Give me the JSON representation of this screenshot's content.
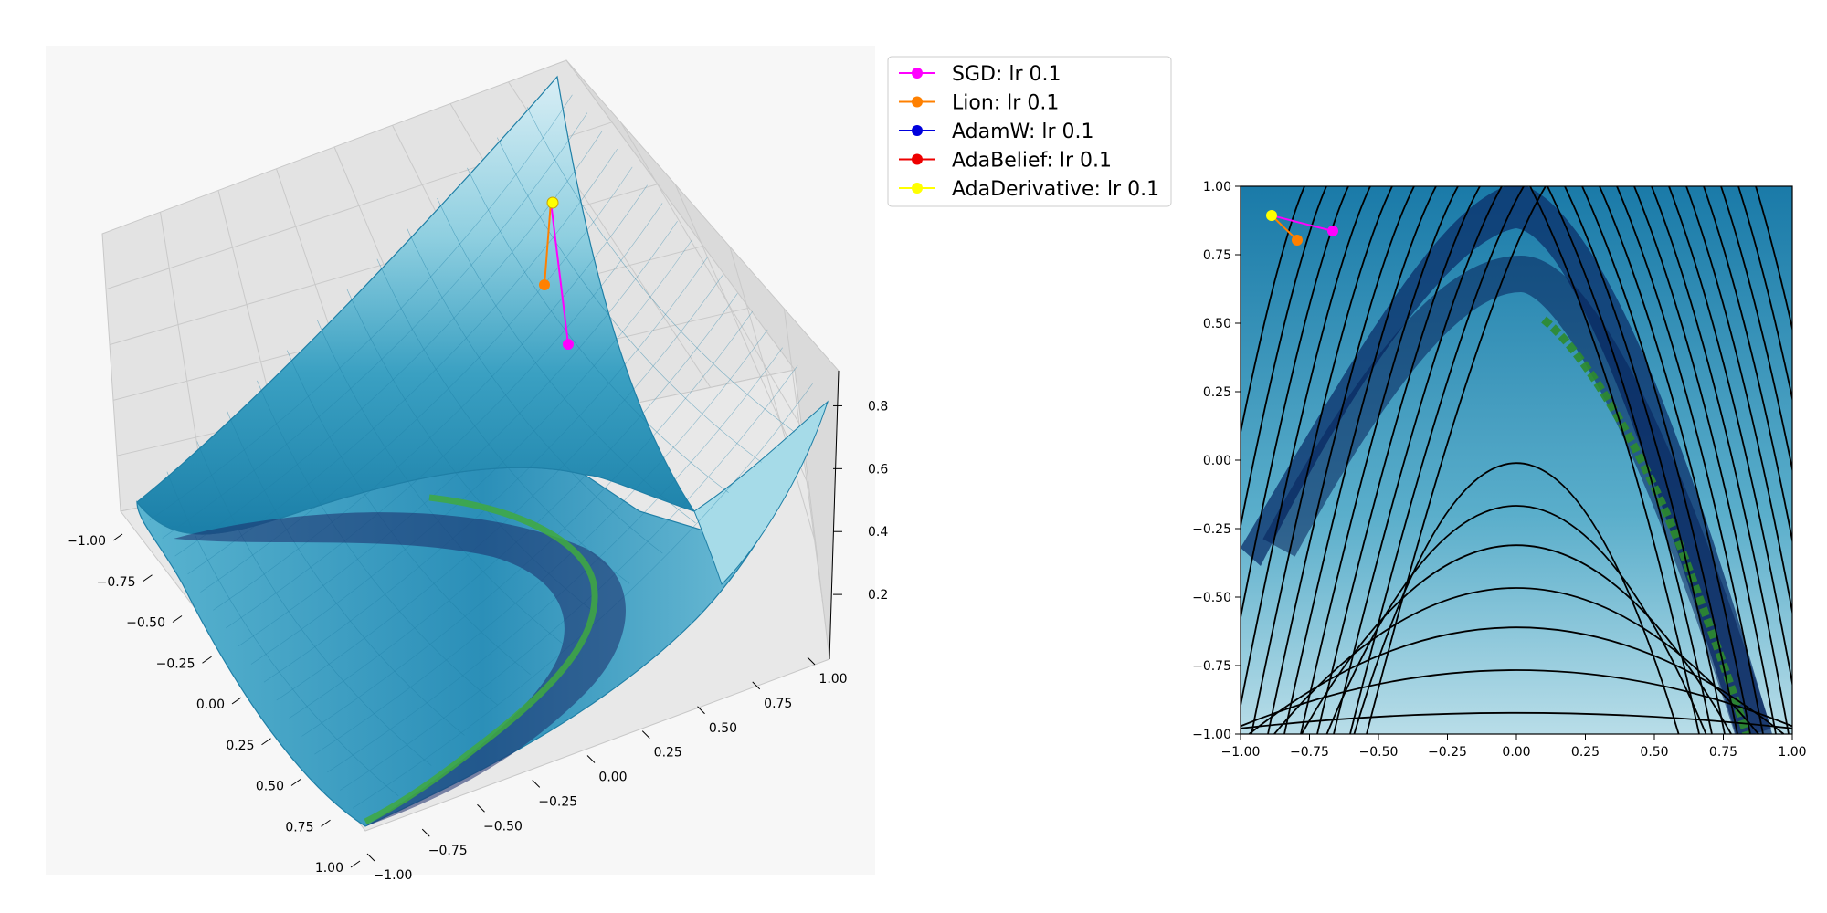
{
  "chart_data": [
    {
      "type": "surface",
      "title": "",
      "xlabel": "",
      "ylabel": "",
      "zlabel": "",
      "xlim": [
        -1,
        1
      ],
      "ylim": [
        -1,
        1
      ],
      "zlim": [
        0,
        0.9
      ],
      "grid": true,
      "x_ticks": [
        "−1.00",
        "−0.75",
        "−0.50",
        "−0.25",
        "0.00",
        "0.25",
        "0.50",
        "0.75",
        "1.00"
      ],
      "y_ticks": [
        "−1.00",
        "−0.75",
        "−0.50",
        "−0.25",
        "0.00",
        "0.25",
        "0.50",
        "0.75",
        "1.00"
      ],
      "z_ticks": [
        "0.2",
        "0.4",
        "0.6",
        "0.8"
      ],
      "colormap": "ocean-blue",
      "minimum_valley_color": "#2e8b2e",
      "legend_placement": "outside-right",
      "series": [
        {
          "name": "SGD: lr 0.1",
          "color": "#ff00ff",
          "points": [
            [
              -0.88,
              0.88,
              0.58
            ],
            [
              -0.66,
              0.84,
              0.38
            ]
          ]
        },
        {
          "name": "Lion: lr 0.1",
          "color": "#ff8000",
          "points": [
            [
              -0.88,
              0.88,
              0.58
            ],
            [
              -0.8,
              0.8,
              0.46
            ]
          ]
        },
        {
          "name": "AdamW: lr 0.1",
          "color": "#0000dd",
          "points": [
            [
              -0.88,
              0.88,
              0.58
            ]
          ]
        },
        {
          "name": "AdaBelief: lr 0.1",
          "color": "#ee0000",
          "points": [
            [
              -0.88,
              0.88,
              0.58
            ]
          ]
        },
        {
          "name": "AdaDerivative: lr 0.1",
          "color": "#ffff00",
          "points": [
            [
              -0.88,
              0.88,
              0.58
            ]
          ]
        }
      ]
    },
    {
      "type": "heatmap",
      "title": "",
      "xlabel": "",
      "ylabel": "",
      "xlim": [
        -1,
        1
      ],
      "ylim": [
        -1,
        1
      ],
      "x_ticks": [
        "−1.00",
        "−0.75",
        "−0.50",
        "−0.25",
        "0.00",
        "0.25",
        "0.50",
        "0.75",
        "1.00"
      ],
      "y_ticks": [
        "1.00",
        "0.75",
        "0.50",
        "0.25",
        "0.00",
        "−0.25",
        "−0.50",
        "−0.75",
        "−1.00"
      ],
      "contour_color": "#000000",
      "series": [
        {
          "name": "SGD: lr 0.1",
          "color": "#ff00ff",
          "points": [
            [
              -0.88,
              0.89
            ],
            [
              -0.67,
              0.83
            ]
          ]
        },
        {
          "name": "Lion: lr 0.1",
          "color": "#ff8000",
          "points": [
            [
              -0.88,
              0.89
            ],
            [
              -0.8,
              0.8
            ]
          ]
        },
        {
          "name": "AdaDerivative: lr 0.1",
          "color": "#ffff00",
          "points": [
            [
              -0.88,
              0.89
            ]
          ]
        }
      ]
    }
  ]
}
